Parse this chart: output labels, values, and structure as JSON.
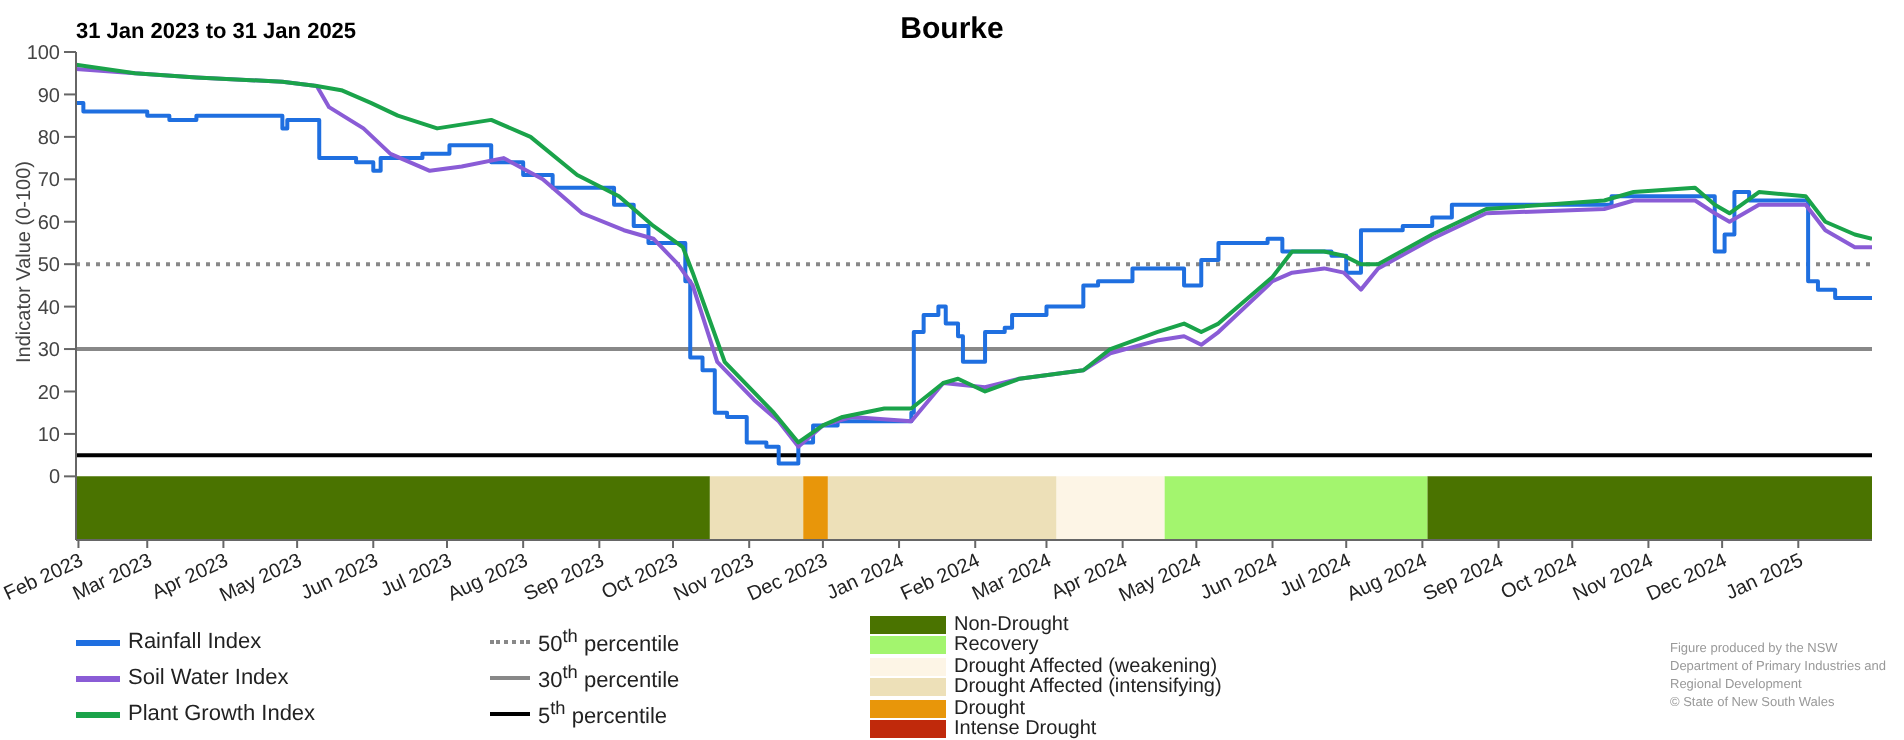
{
  "chart_data": {
    "type": "line",
    "title": "Bourke",
    "subtitle": "31 Jan 2023 to 31 Jan 2025",
    "ylabel": "Indicator Value (0-100)",
    "xlim": [
      "2023-01-31",
      "2025-01-31"
    ],
    "xticks": [
      {
        "value": "2023-02-01",
        "label": "Feb 2023"
      },
      {
        "value": "2023-03-01",
        "label": "Mar 2023"
      },
      {
        "value": "2023-04-01",
        "label": "Apr 2023"
      },
      {
        "value": "2023-05-01",
        "label": "May 2023"
      },
      {
        "value": "2023-06-01",
        "label": "Jun 2023"
      },
      {
        "value": "2023-07-01",
        "label": "Jul 2023"
      },
      {
        "value": "2023-08-01",
        "label": "Aug 2023"
      },
      {
        "value": "2023-09-01",
        "label": "Sep 2023"
      },
      {
        "value": "2023-10-01",
        "label": "Oct 2023"
      },
      {
        "value": "2023-11-01",
        "label": "Nov 2023"
      },
      {
        "value": "2023-12-01",
        "label": "Dec 2023"
      },
      {
        "value": "2024-01-01",
        "label": "Jan 2024"
      },
      {
        "value": "2024-02-01",
        "label": "Feb 2024"
      },
      {
        "value": "2024-03-01",
        "label": "Mar 2024"
      },
      {
        "value": "2024-04-01",
        "label": "Apr 2024"
      },
      {
        "value": "2024-05-01",
        "label": "May 2024"
      },
      {
        "value": "2024-06-01",
        "label": "Jun 2024"
      },
      {
        "value": "2024-07-01",
        "label": "Jul 2024"
      },
      {
        "value": "2024-08-01",
        "label": "Aug 2024"
      },
      {
        "value": "2024-09-01",
        "label": "Sep 2024"
      },
      {
        "value": "2024-10-01",
        "label": "Oct 2024"
      },
      {
        "value": "2024-11-01",
        "label": "Nov 2024"
      },
      {
        "value": "2024-12-01",
        "label": "Dec 2024"
      },
      {
        "value": "2025-01-01",
        "label": "Jan 2025"
      }
    ],
    "ylim": [
      -15,
      100
    ],
    "yticks": [
      0,
      10,
      20,
      30,
      40,
      50,
      60,
      70,
      80,
      90,
      100
    ],
    "legend": "bottom",
    "series": [
      {
        "name": "Rainfall Index",
        "type": "step",
        "color": "#1f6fe0",
        "x": [
          "2023-01-31",
          "2023-02-03",
          "2023-03-01",
          "2023-03-10",
          "2023-03-21",
          "2023-04-25",
          "2023-04-27",
          "2023-05-10",
          "2023-05-25",
          "2023-06-01",
          "2023-06-04",
          "2023-06-21",
          "2023-07-02",
          "2023-07-19",
          "2023-08-01",
          "2023-08-13",
          "2023-09-07",
          "2023-09-15",
          "2023-09-21",
          "2023-10-06",
          "2023-10-08",
          "2023-10-13",
          "2023-10-18",
          "2023-10-23",
          "2023-10-31",
          "2023-11-08",
          "2023-11-13",
          "2023-11-21",
          "2023-11-27",
          "2023-12-07",
          "2024-01-06",
          "2024-01-07",
          "2024-01-11",
          "2024-01-17",
          "2024-01-20",
          "2024-01-25",
          "2024-01-27",
          "2024-02-05",
          "2024-02-13",
          "2024-02-16",
          "2024-03-01",
          "2024-03-16",
          "2024-03-22",
          "2024-04-05",
          "2024-04-26",
          "2024-05-03",
          "2024-05-10",
          "2024-05-30",
          "2024-06-05",
          "2024-06-25",
          "2024-07-01",
          "2024-07-07",
          "2024-07-24",
          "2024-08-05",
          "2024-08-13",
          "2024-10-17",
          "2024-11-20",
          "2024-11-28",
          "2024-12-02",
          "2024-12-06",
          "2024-12-12",
          "2025-01-05",
          "2025-01-09",
          "2025-01-16",
          "2025-01-31"
        ],
        "values": [
          88,
          86,
          85,
          84,
          85,
          82,
          84,
          75,
          74,
          72,
          75,
          76,
          78,
          74,
          71,
          68,
          64,
          59,
          55,
          46,
          28,
          25,
          15,
          14,
          8,
          7,
          3,
          8,
          12,
          13,
          15,
          34,
          38,
          40,
          36,
          33,
          27,
          34,
          35,
          38,
          40,
          45,
          46,
          49,
          45,
          51,
          55,
          56,
          53,
          52,
          48,
          58,
          59,
          61,
          64,
          66,
          66,
          53,
          57,
          67,
          65,
          46,
          44,
          42,
          42
        ]
      },
      {
        "name": "Soil Water Index",
        "type": "line",
        "color": "#8a5cd6",
        "x": [
          "2023-01-31",
          "2023-02-24",
          "2023-03-21",
          "2023-04-25",
          "2023-05-09",
          "2023-05-14",
          "2023-05-28",
          "2023-06-08",
          "2023-06-24",
          "2023-07-07",
          "2023-07-24",
          "2023-08-09",
          "2023-08-25",
          "2023-09-11",
          "2023-09-23",
          "2023-10-03",
          "2023-10-09",
          "2023-10-19",
          "2023-11-03",
          "2023-11-13",
          "2023-11-21",
          "2023-12-01",
          "2023-12-13",
          "2024-01-06",
          "2024-01-19",
          "2024-02-05",
          "2024-02-19",
          "2024-03-16",
          "2024-03-27",
          "2024-04-15",
          "2024-04-26",
          "2024-05-03",
          "2024-05-10",
          "2024-06-01",
          "2024-06-09",
          "2024-06-22",
          "2024-06-30",
          "2024-07-07",
          "2024-07-14",
          "2024-08-05",
          "2024-08-27",
          "2024-10-14",
          "2024-10-26",
          "2024-11-20",
          "2024-11-28",
          "2024-12-04",
          "2024-12-16",
          "2025-01-04",
          "2025-01-12",
          "2025-01-24",
          "2025-01-31"
        ],
        "values": [
          96,
          95,
          94,
          93,
          92,
          87,
          82,
          76,
          72,
          73,
          75,
          70,
          62,
          58,
          56,
          50,
          45,
          27,
          18,
          13,
          7,
          12,
          14,
          13,
          22,
          21,
          23,
          25,
          29,
          32,
          33,
          31,
          34,
          46,
          48,
          49,
          48,
          44,
          49,
          56,
          62,
          63,
          65,
          65,
          62,
          60,
          64,
          64,
          58,
          54,
          54
        ]
      },
      {
        "name": "Plant Growth Index",
        "type": "line",
        "color": "#1aa34a",
        "x": [
          "2023-01-31",
          "2023-02-24",
          "2023-03-21",
          "2023-04-25",
          "2023-05-09",
          "2023-05-19",
          "2023-05-31",
          "2023-06-11",
          "2023-06-27",
          "2023-07-19",
          "2023-08-04",
          "2023-08-23",
          "2023-09-09",
          "2023-09-23",
          "2023-10-05",
          "2023-10-09",
          "2023-10-22",
          "2023-11-11",
          "2023-11-21",
          "2023-12-01",
          "2023-12-09",
          "2023-12-26",
          "2024-01-06",
          "2024-01-19",
          "2024-01-25",
          "2024-02-05",
          "2024-02-19",
          "2024-03-16",
          "2024-03-27",
          "2024-04-15",
          "2024-04-26",
          "2024-05-03",
          "2024-05-10",
          "2024-06-01",
          "2024-06-09",
          "2024-06-22",
          "2024-06-30",
          "2024-07-07",
          "2024-07-14",
          "2024-08-05",
          "2024-08-27",
          "2024-10-14",
          "2024-10-26",
          "2024-11-20",
          "2024-11-28",
          "2024-12-04",
          "2024-12-16",
          "2025-01-04",
          "2025-01-12",
          "2025-01-24",
          "2025-01-31"
        ],
        "values": [
          97,
          95,
          94,
          93,
          92,
          91,
          88,
          85,
          82,
          84,
          80,
          71,
          66,
          59,
          54,
          48,
          27,
          15,
          8,
          12,
          14,
          16,
          16,
          22,
          23,
          20,
          23,
          25,
          30,
          34,
          36,
          34,
          36,
          47,
          53,
          53,
          52,
          50,
          50,
          57,
          63,
          65,
          67,
          68,
          64,
          62,
          67,
          66,
          60,
          57,
          56
        ]
      }
    ],
    "ref_lines": [
      {
        "axis": "y",
        "value": 50,
        "label": "50$^{th}$ percentile",
        "color": "#888888",
        "line_style": "dotted"
      },
      {
        "axis": "y",
        "value": 30,
        "label": "30$^{th}$ percentile",
        "color": "#888888",
        "line_style": "solid"
      },
      {
        "axis": "y",
        "value": 5,
        "label": "5$^{th}$ percentile",
        "color": "#000000",
        "line_style": "solid"
      }
    ],
    "bands": [
      {
        "axis": "x",
        "from": "2023-01-31",
        "to": "2023-10-16",
        "label": "Non-Drought",
        "color": "#4a7300"
      },
      {
        "axis": "x",
        "from": "2024-08-03",
        "to": "2025-01-31",
        "color": "#4a7300"
      },
      {
        "axis": "x",
        "from": "2024-04-18",
        "to": "2024-08-03",
        "label": "Recovery",
        "color": "#a3f56e"
      },
      {
        "axis": "x",
        "from": "2024-03-05",
        "to": "2024-04-18",
        "label": "Drought Affected (weakening)",
        "color": "#fdf5e6"
      },
      {
        "axis": "x",
        "from": "2023-10-16",
        "to": "2023-11-23",
        "label": "Drought Affected (intensifying)",
        "color": "#ede0b8"
      },
      {
        "axis": "x",
        "from": "2023-12-03",
        "to": "2024-03-05",
        "color": "#ede0b8"
      },
      {
        "axis": "x",
        "from": "2023-11-23",
        "to": "2023-12-03",
        "label": "Drought",
        "color": "#e8960a"
      }
    ],
    "annotations": [
      "Intense Drought",
      "Figure produced by the NSW Department of Primary Industries and Regional Development",
      "© State of New South Wales"
    ]
  }
}
